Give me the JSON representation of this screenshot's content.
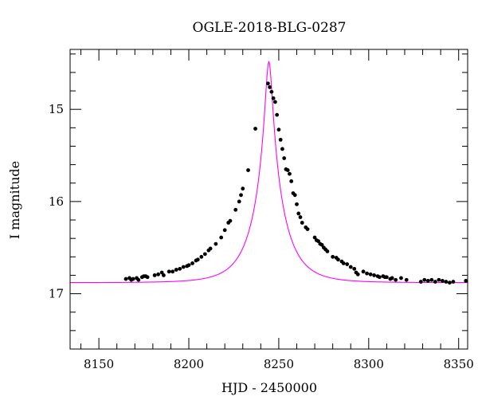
{
  "chart_data": {
    "type": "scatter",
    "title": "OGLE-2018-BLG-0287",
    "xlabel": "HJD - 2450000",
    "ylabel": "I magnitude",
    "xlim": [
      8134,
      8355
    ],
    "ylim": [
      17.6,
      14.35
    ],
    "y_inverted": true,
    "grid": false,
    "x_ticks": [
      8150,
      8200,
      8250,
      8300,
      8350
    ],
    "y_ticks": [
      15,
      16,
      17
    ],
    "x_tick_labels": [
      "8150",
      "8200",
      "8250",
      "8300",
      "8350"
    ],
    "y_tick_labels": [
      "15",
      "16",
      "17"
    ],
    "series": [
      {
        "kind": "points",
        "color": "#000000",
        "points": [
          [
            8165,
            16.84
          ],
          [
            8167,
            16.83
          ],
          [
            8168,
            16.85
          ],
          [
            8169,
            16.84
          ],
          [
            8171,
            16.83
          ],
          [
            8172,
            16.85
          ],
          [
            8174,
            16.82
          ],
          [
            8175,
            16.81
          ],
          [
            8176,
            16.81
          ],
          [
            8177,
            16.82
          ],
          [
            8181,
            16.8
          ],
          [
            8183,
            16.79
          ],
          [
            8185,
            16.77
          ],
          [
            8186,
            16.8
          ],
          [
            8189,
            16.76
          ],
          [
            8191,
            16.76
          ],
          [
            8193,
            16.74
          ],
          [
            8195,
            16.73
          ],
          [
            8197,
            16.71
          ],
          [
            8199,
            16.7
          ],
          [
            8200,
            16.69
          ],
          [
            8202,
            16.67
          ],
          [
            8204,
            16.64
          ],
          [
            8205,
            16.63
          ],
          [
            8207,
            16.6
          ],
          [
            8209,
            16.57
          ],
          [
            8211,
            16.53
          ],
          [
            8212,
            16.51
          ],
          [
            8215,
            16.46
          ],
          [
            8218,
            16.39
          ],
          [
            8220,
            16.31
          ],
          [
            8222,
            16.23
          ],
          [
            8223,
            16.21
          ],
          [
            8226,
            16.09
          ],
          [
            8228,
            16.0
          ],
          [
            8229,
            15.93
          ],
          [
            8230,
            15.86
          ],
          [
            8233,
            15.66
          ],
          [
            8237,
            15.21
          ],
          [
            8244,
            14.72
          ],
          [
            8245,
            14.76
          ],
          [
            8246,
            14.81
          ],
          [
            8247,
            14.88
          ],
          [
            8248,
            14.92
          ],
          [
            8249,
            15.06
          ],
          [
            8250,
            15.22
          ],
          [
            8251,
            15.33
          ],
          [
            8252,
            15.43
          ],
          [
            8253,
            15.53
          ],
          [
            8254,
            15.65
          ],
          [
            8255,
            15.66
          ],
          [
            8256,
            15.7
          ],
          [
            8257,
            15.78
          ],
          [
            8258,
            15.91
          ],
          [
            8259,
            15.93
          ],
          [
            8260,
            16.03
          ],
          [
            8261,
            16.13
          ],
          [
            8262,
            16.17
          ],
          [
            8263,
            16.23
          ],
          [
            8265,
            16.28
          ],
          [
            8266,
            16.3
          ],
          [
            8270,
            16.39
          ],
          [
            8271,
            16.42
          ],
          [
            8272,
            16.43
          ],
          [
            8273,
            16.46
          ],
          [
            8274,
            16.47
          ],
          [
            8275,
            16.5
          ],
          [
            8276,
            16.52
          ],
          [
            8277,
            16.54
          ],
          [
            8280,
            16.6
          ],
          [
            8282,
            16.61
          ],
          [
            8283,
            16.63
          ],
          [
            8285,
            16.65
          ],
          [
            8286,
            16.67
          ],
          [
            8288,
            16.68
          ],
          [
            8290,
            16.71
          ],
          [
            8292,
            16.73
          ],
          [
            8293,
            16.77
          ],
          [
            8294,
            16.79
          ],
          [
            8297,
            16.76
          ],
          [
            8299,
            16.78
          ],
          [
            8301,
            16.79
          ],
          [
            8303,
            16.8
          ],
          [
            8305,
            16.81
          ],
          [
            8306,
            16.82
          ],
          [
            8308,
            16.81
          ],
          [
            8309,
            16.82
          ],
          [
            8310,
            16.82
          ],
          [
            8312,
            16.84
          ],
          [
            8313,
            16.83
          ],
          [
            8315,
            16.85
          ],
          [
            8318,
            16.83
          ],
          [
            8321,
            16.85
          ],
          [
            8329,
            16.87
          ],
          [
            8331,
            16.85
          ],
          [
            8333,
            16.86
          ],
          [
            8335,
            16.85
          ],
          [
            8337,
            16.87
          ],
          [
            8339,
            16.85
          ],
          [
            8341,
            16.86
          ],
          [
            8343,
            16.87
          ],
          [
            8345,
            16.88
          ],
          [
            8347,
            16.87
          ],
          [
            8354,
            16.86
          ]
        ]
      },
      {
        "kind": "model-curve",
        "color": "#ff00ff",
        "t0": 8244.5,
        "u0": 0.11,
        "tE": 16,
        "baseline": 16.88
      }
    ]
  }
}
